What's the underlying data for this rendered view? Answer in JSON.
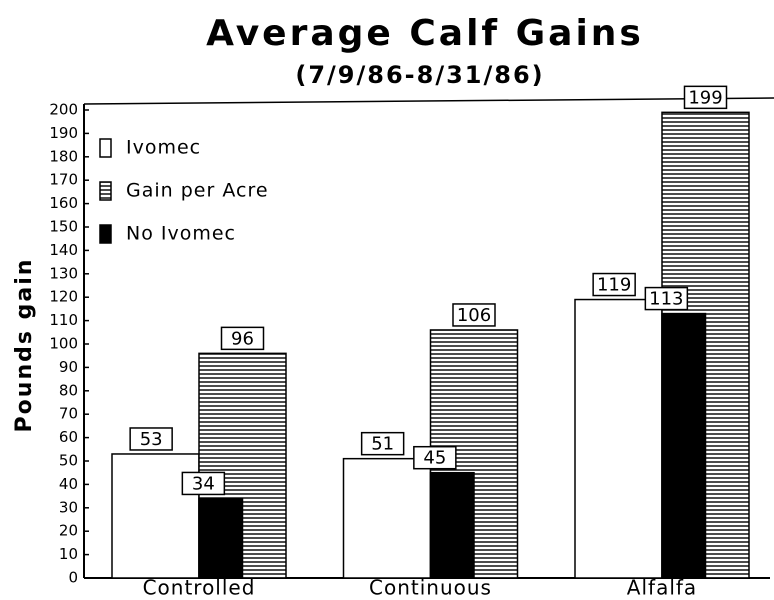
{
  "chart_data": {
    "type": "bar",
    "title": "Average Calf Gains",
    "subtitle": "(7/9/86-8/31/86)",
    "y_label": "Pounds gain",
    "categories": [
      "Controlled",
      "Continuous",
      "Alfalfa"
    ],
    "series": [
      {
        "name": "Ivomec",
        "color": "#ffffff",
        "values": [
          53,
          51,
          119
        ]
      },
      {
        "name": "Gain per Acre",
        "color": "#ffffff",
        "hatch": "horizontal",
        "values": [
          96,
          106,
          199
        ]
      },
      {
        "name": "No Ivomec",
        "color": "#000000",
        "values": [
          34,
          45,
          113
        ]
      }
    ],
    "ylim": [
      0,
      200
    ],
    "yticks": [
      0,
      10,
      20,
      30,
      40,
      50,
      60,
      70,
      80,
      90,
      100,
      110,
      120,
      130,
      140,
      150,
      160,
      170,
      180,
      190,
      200
    ],
    "legend": "top-left"
  }
}
